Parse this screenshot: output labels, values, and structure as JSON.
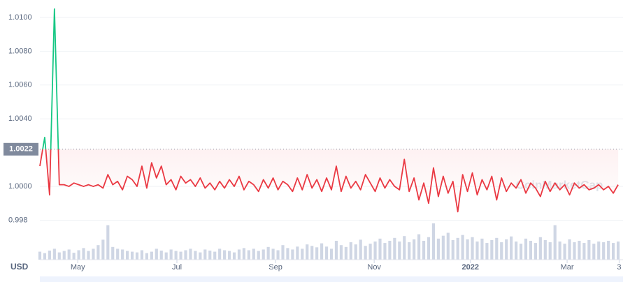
{
  "chart_data": {
    "type": "line",
    "currency": "USD",
    "watermark": "CoinMarketCap",
    "baseline": 1.0022,
    "color_up": "#16c784",
    "color_down": "#ea3943",
    "volume_color": "#cfd6e4",
    "grid": true,
    "xlim": [
      0,
      120
    ],
    "xticks": [
      {
        "value": 7.8,
        "label": "May"
      },
      {
        "value": 28.2,
        "label": "Jul"
      },
      {
        "value": 48.5,
        "label": "Sep"
      },
      {
        "value": 68.8,
        "label": "Nov"
      },
      {
        "value": 88.6,
        "label": "2022"
      },
      {
        "value": 108.5,
        "label": "Mar"
      },
      {
        "value": 119.2,
        "label": "3"
      }
    ],
    "ylim": [
      0.9974,
      1.0107
    ],
    "yticks": [
      0.998,
      {
        "value": 1,
        "label": "1.0000"
      },
      {
        "value": 1.004,
        "label": "1.0040"
      },
      {
        "value": 1.006,
        "label": "1.0060"
      },
      {
        "value": 1.008,
        "label": "1.0080"
      },
      {
        "value": 1.01,
        "label": "1.0100"
      }
    ],
    "values": [
      1.0012,
      1.0029,
      0.9995,
      1.0105,
      1.0001,
      1.0001,
      1.0,
      1.0002,
      1.0001,
      1.0,
      1.0001,
      1.0,
      1.0001,
      0.9999,
      1.0007,
      1.0001,
      1.0003,
      0.9998,
      1.0006,
      1.0004,
      1.0,
      1.0012,
      0.9999,
      1.0014,
      1.0005,
      1.0012,
      1.0001,
      1.0004,
      0.9998,
      1.0006,
      1.0002,
      1.0004,
      1.0,
      1.0005,
      0.9999,
      1.0002,
      0.9998,
      1.0003,
      0.9999,
      1.0004,
      1.0,
      1.0006,
      0.9998,
      1.0003,
      1.0001,
      0.9997,
      1.0004,
      0.9999,
      1.0005,
      0.9998,
      1.0003,
      1.0001,
      0.9997,
      1.0005,
      0.9998,
      1.0007,
      0.9999,
      1.0004,
      0.9997,
      1.0005,
      0.9998,
      1.0012,
      0.9997,
      1.0006,
      0.9999,
      1.0003,
      0.9998,
      1.0007,
      1.0002,
      0.9997,
      1.0005,
      0.9999,
      1.0004,
      1.0,
      0.9998,
      1.0016,
      0.9997,
      1.0005,
      0.9992,
      1.0002,
      0.999,
      1.0011,
      0.9994,
      1.0006,
      0.9996,
      1.0003,
      0.9985,
      1.0007,
      0.9997,
      1.0008,
      0.9995,
      1.0004,
      0.9998,
      1.0006,
      0.9992,
      1.0005,
      0.9997,
      1.0002,
      0.9999,
      1.0004,
      0.9996,
      1.0002,
      0.9999,
      0.9994,
      1.0003,
      0.9997,
      1.0002,
      0.9998,
      1.0001,
      0.9995,
      1.0002,
      0.9999,
      1.0001,
      0.9998,
      0.9999,
      1.0001,
      0.9998,
      1.0,
      0.9996,
      1.0001
    ],
    "volume_ylim": [
      0,
      100
    ],
    "volume": [
      22,
      18,
      25,
      30,
      20,
      24,
      28,
      19,
      26,
      32,
      24,
      30,
      40,
      55,
      95,
      35,
      30,
      28,
      24,
      22,
      20,
      26,
      18,
      22,
      30,
      25,
      20,
      28,
      24,
      22,
      26,
      30,
      24,
      20,
      28,
      25,
      22,
      30,
      26,
      24,
      20,
      28,
      32,
      26,
      30,
      24,
      28,
      35,
      30,
      26,
      40,
      32,
      28,
      36,
      30,
      42,
      38,
      34,
      45,
      36,
      30,
      52,
      40,
      35,
      48,
      42,
      55,
      38,
      44,
      50,
      58,
      46,
      52,
      60,
      50,
      65,
      48,
      56,
      70,
      52,
      62,
      100,
      58,
      66,
      74,
      54,
      60,
      68,
      56,
      62,
      50,
      58,
      46,
      54,
      60,
      48,
      56,
      64,
      50,
      44,
      58,
      52,
      46,
      62,
      54,
      48,
      95,
      50,
      44,
      56,
      48,
      52,
      46,
      54,
      44,
      50,
      48,
      52,
      46,
      50
    ]
  }
}
